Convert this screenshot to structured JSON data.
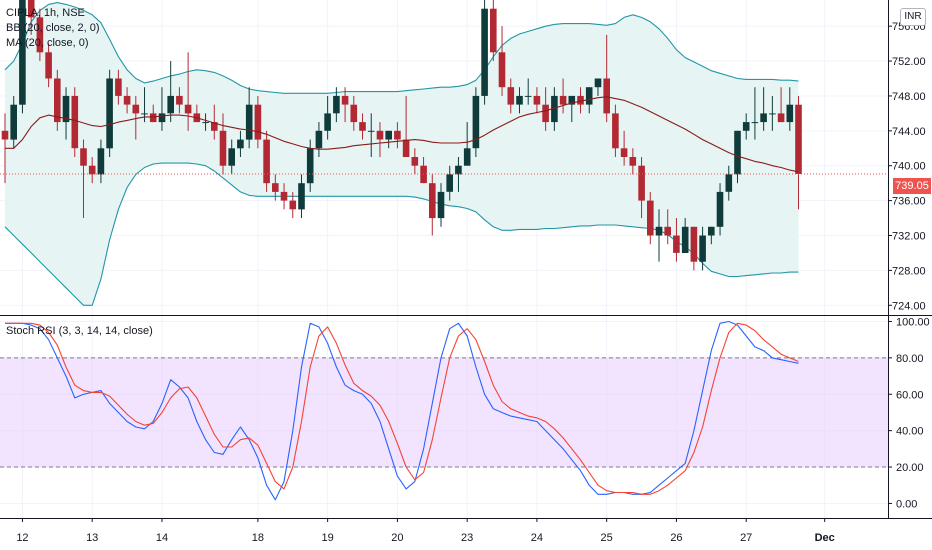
{
  "legend": {
    "symbol": "CIPLA, 1h, NSE",
    "bb": "BB (20, close, 2, 0)",
    "ma": "MA (20, close, 0)",
    "stoch": "Stoch RSI (3, 3, 14, 14, close)"
  },
  "currency": "INR",
  "last_price": "739.05",
  "colors": {
    "up": "#26a69a",
    "down": "#ef5350",
    "up_fill": "#0f3b3a",
    "down_fill": "#b22833",
    "bb_band": "#2196a6",
    "bb_fill": "#e6f5f4",
    "ma": "#8b1a1a",
    "stoch_k": "#2962ff",
    "stoch_d": "#f44336",
    "stoch_zone": "#e7ccff",
    "last_line": "#ef5350"
  },
  "chart_data": [
    {
      "type": "candlestick",
      "title": "CIPLA, 1h, NSE",
      "ylim": [
        723,
        759
      ],
      "y_ticks": [
        724,
        728,
        732,
        736,
        740,
        744,
        748,
        752,
        756
      ],
      "y_tick_labels": [
        "724.00",
        "728.00",
        "732.00",
        "736.00",
        "740.00",
        "744.00",
        "748.00",
        "752.00",
        "756.00"
      ],
      "x_labels": [
        "12",
        "13",
        "14",
        "18",
        "19",
        "20",
        "23",
        "24",
        "25",
        "26",
        "27",
        "Dec"
      ],
      "last_price": 739.05,
      "candles": [
        [
          744.0,
          746.0,
          738.0,
          743.0
        ],
        [
          743.0,
          748.0,
          742.0,
          747.0
        ],
        [
          747.0,
          760.0,
          746.0,
          759.0
        ],
        [
          759.0,
          761.0,
          755.0,
          757.0
        ],
        [
          757.0,
          758.0,
          752.0,
          753.0
        ],
        [
          753.0,
          754.0,
          749.0,
          750.0
        ],
        [
          750.0,
          751.0,
          744.0,
          745.0
        ],
        [
          745.0,
          749.0,
          743.0,
          748.0
        ],
        [
          748.0,
          749.0,
          741.0,
          742.0
        ],
        [
          742.0,
          743.0,
          734.0,
          740.0
        ],
        [
          740.0,
          741.0,
          738.0,
          739.0
        ],
        [
          739.0,
          743.0,
          738.0,
          742.0
        ],
        [
          742.0,
          751.0,
          741.0,
          750.0
        ],
        [
          750.0,
          751.0,
          747.0,
          748.0
        ],
        [
          748.0,
          749.0,
          746.0,
          747.0
        ],
        [
          747.0,
          748.0,
          743.0,
          746.0
        ],
        [
          746.0,
          749.0,
          745.0,
          746.0
        ],
        [
          746.0,
          747.0,
          745.0,
          745.0
        ],
        [
          745.0,
          749.0,
          744.0,
          746.0
        ],
        [
          746.0,
          752.0,
          745.0,
          748.0
        ],
        [
          748.0,
          749.0,
          746.0,
          747.0
        ],
        [
          747.0,
          753.0,
          744.0,
          746.0
        ],
        [
          746.0,
          747.0,
          745.0,
          745.0
        ],
        [
          745.0,
          746.0,
          744.0,
          745.0
        ],
        [
          745.0,
          747.0,
          743.0,
          744.0
        ],
        [
          744.0,
          746.0,
          739.0,
          740.0
        ],
        [
          740.0,
          743.0,
          739.0,
          742.0
        ],
        [
          742.0,
          744.0,
          741.0,
          743.0
        ],
        [
          743.0,
          749.0,
          742.0,
          747.0
        ],
        [
          747.0,
          748.0,
          742.0,
          743.0
        ],
        [
          743.0,
          744.0,
          737.0,
          738.0
        ],
        [
          738.0,
          739.0,
          736.0,
          737.0
        ],
        [
          737.0,
          738.0,
          735.0,
          736.0
        ],
        [
          736.0,
          737.0,
          734.0,
          735.0
        ],
        [
          735.0,
          739.0,
          734.0,
          738.0
        ],
        [
          738.0,
          743.0,
          737.0,
          742.0
        ],
        [
          742.0,
          745.0,
          741.0,
          744.0
        ],
        [
          744.0,
          748.0,
          743.0,
          746.0
        ],
        [
          746.0,
          749.0,
          745.0,
          748.0
        ],
        [
          748.0,
          749.0,
          745.0,
          747.0
        ],
        [
          747.0,
          748.0,
          744.0,
          745.0
        ],
        [
          745.0,
          746.0,
          743.0,
          744.0
        ],
        [
          744.0,
          746.0,
          741.0,
          744.0
        ],
        [
          744.0,
          745.0,
          741.0,
          743.0
        ],
        [
          743.0,
          744.0,
          742.0,
          744.0
        ],
        [
          744.0,
          745.0,
          742.0,
          743.0
        ],
        [
          743.0,
          748.0,
          741.0,
          741.0
        ],
        [
          741.0,
          742.0,
          739.0,
          740.0
        ],
        [
          740.0,
          741.0,
          738.0,
          738.0
        ],
        [
          738.0,
          739.0,
          732.0,
          734.0
        ],
        [
          734.0,
          738.0,
          733.0,
          737.0
        ],
        [
          737.0,
          740.0,
          736.0,
          739.0
        ],
        [
          739.0,
          741.0,
          737.0,
          740.0
        ],
        [
          740.0,
          745.0,
          740.0,
          742.0
        ],
        [
          742.0,
          749.0,
          741.0,
          748.0
        ],
        [
          748.0,
          759.0,
          747.0,
          758.0
        ],
        [
          758.0,
          759.0,
          752.0,
          753.0
        ],
        [
          753.0,
          756.0,
          748.0,
          749.0
        ],
        [
          749.0,
          750.0,
          746.0,
          747.0
        ],
        [
          747.0,
          749.0,
          746.0,
          748.0
        ],
        [
          748.0,
          750.0,
          747.0,
          748.0
        ],
        [
          748.0,
          749.0,
          746.0,
          747.0
        ],
        [
          747.0,
          749.0,
          744.0,
          745.0
        ],
        [
          745.0,
          749.0,
          744.0,
          748.0
        ],
        [
          748.0,
          750.0,
          746.0,
          747.0
        ],
        [
          747.0,
          748.0,
          745.0,
          748.0
        ],
        [
          748.0,
          749.0,
          746.0,
          747.0
        ],
        [
          747.0,
          749.0,
          746.0,
          749.0
        ],
        [
          749.0,
          750.0,
          748.0,
          750.0
        ],
        [
          750.0,
          755.0,
          745.0,
          746.0
        ],
        [
          746.0,
          747.0,
          741.0,
          742.0
        ],
        [
          742.0,
          744.0,
          740.0,
          741.0
        ],
        [
          741.0,
          742.0,
          739.0,
          740.0
        ],
        [
          740.0,
          741.0,
          734.0,
          736.0
        ],
        [
          736.0,
          737.0,
          731.0,
          732.0
        ],
        [
          732.0,
          735.0,
          729.0,
          733.0
        ],
        [
          733.0,
          735.0,
          731.0,
          732.0
        ],
        [
          732.0,
          734.0,
          729.0,
          730.0
        ],
        [
          730.0,
          734.0,
          730.0,
          733.0
        ],
        [
          733.0,
          733.0,
          728.0,
          729.0
        ],
        [
          729.0,
          733.0,
          728.0,
          732.0
        ],
        [
          732.0,
          733.0,
          731.0,
          733.0
        ],
        [
          733.0,
          738.0,
          732.0,
          737.0
        ],
        [
          737.0,
          740.0,
          736.0,
          739.0
        ],
        [
          739.0,
          744.0,
          738.0,
          744.0
        ],
        [
          744.0,
          746.0,
          743.0,
          745.0
        ],
        [
          745.0,
          749.0,
          743.0,
          745.0
        ],
        [
          745.0,
          749.0,
          744.0,
          746.0
        ],
        [
          746.0,
          748.0,
          744.0,
          746.0
        ],
        [
          746.0,
          749.0,
          745.0,
          745.0
        ],
        [
          745.0,
          749.0,
          744.0,
          747.0
        ],
        [
          747.0,
          748.0,
          735.0,
          739.05
        ]
      ],
      "ma": [
        742.0,
        742.0,
        743.0,
        744.5,
        745.5,
        745.8,
        745.6,
        745.4,
        745.2,
        744.9,
        744.6,
        744.5,
        744.7,
        745.0,
        745.2,
        745.4,
        745.6,
        745.6,
        745.7,
        745.8,
        745.8,
        745.7,
        745.5,
        745.2,
        744.9,
        744.6,
        744.4,
        744.2,
        744.1,
        743.9,
        743.6,
        743.2,
        742.8,
        742.5,
        742.2,
        742.0,
        741.9,
        741.9,
        742.0,
        742.1,
        742.3,
        742.4,
        742.5,
        742.6,
        742.7,
        742.8,
        742.9,
        743.0,
        742.9,
        742.7,
        742.6,
        742.6,
        742.6,
        742.7,
        743.0,
        743.5,
        744.1,
        744.6,
        745.1,
        745.6,
        745.9,
        746.1,
        746.3,
        746.6,
        746.9,
        747.2,
        747.4,
        747.6,
        747.8,
        747.9,
        747.7,
        747.5,
        747.1,
        746.7,
        746.2,
        745.7,
        745.2,
        744.7,
        744.2,
        743.6,
        743.0,
        742.5,
        742.0,
        741.5,
        741.1,
        740.8,
        740.5,
        740.3,
        740.0,
        739.8,
        739.5,
        739.3
      ],
      "bb_upper": [
        751.0,
        752.0,
        754.0,
        756.5,
        757.8,
        758.5,
        758.7,
        758.5,
        758.2,
        757.8,
        757.3,
        756.4,
        754.5,
        752.5,
        751.0,
        750.0,
        749.5,
        749.7,
        750.0,
        750.3,
        750.5,
        750.8,
        751.0,
        750.9,
        750.7,
        750.3,
        749.8,
        749.2,
        748.8,
        748.6,
        748.5,
        748.4,
        748.3,
        748.3,
        748.3,
        748.3,
        748.3,
        748.3,
        748.4,
        748.5,
        748.5,
        748.5,
        748.5,
        748.5,
        748.5,
        748.5,
        748.6,
        748.7,
        748.8,
        748.9,
        749.0,
        749.0,
        749.1,
        749.3,
        749.8,
        751.0,
        752.5,
        753.8,
        754.6,
        755.1,
        755.4,
        755.7,
        756.0,
        756.2,
        756.3,
        756.3,
        756.3,
        756.3,
        756.2,
        756.1,
        756.3,
        757.0,
        757.3,
        757.0,
        756.5,
        755.7,
        754.6,
        753.3,
        752.4,
        751.9,
        751.4,
        750.9,
        750.6,
        750.3,
        750.0,
        749.9,
        749.9,
        749.9,
        749.9,
        749.8,
        749.8,
        749.7
      ],
      "bb_lower": [
        733.0,
        732.0,
        731.0,
        730.0,
        729.0,
        728.0,
        727.0,
        726.0,
        725.0,
        724.0,
        724.0,
        727.0,
        731.5,
        735.0,
        737.5,
        739.0,
        739.8,
        740.2,
        740.3,
        740.3,
        740.3,
        740.3,
        740.2,
        740.0,
        739.4,
        738.6,
        737.8,
        737.0,
        736.6,
        736.5,
        736.5,
        736.5,
        736.5,
        736.5,
        736.5,
        736.5,
        736.5,
        736.5,
        736.5,
        736.5,
        736.5,
        736.5,
        736.5,
        736.5,
        736.5,
        736.5,
        736.5,
        736.4,
        736.2,
        735.9,
        735.6,
        735.4,
        735.3,
        735.1,
        734.7,
        733.8,
        733.0,
        732.6,
        732.6,
        732.7,
        732.7,
        732.7,
        732.8,
        732.8,
        732.9,
        733.0,
        733.1,
        733.1,
        733.2,
        733.2,
        733.2,
        733.1,
        733.0,
        732.9,
        732.8,
        732.6,
        732.1,
        731.3,
        730.7,
        729.9,
        728.8,
        727.9,
        727.6,
        727.3,
        727.3,
        727.4,
        727.5,
        727.6,
        727.7,
        727.7,
        727.8,
        727.8
      ]
    },
    {
      "type": "line",
      "title": "Stoch RSI (3, 3, 14, 14, close)",
      "ylim": [
        -8,
        103
      ],
      "y_ticks": [
        0,
        20,
        40,
        60,
        80,
        100
      ],
      "y_tick_labels": [
        "0.00",
        "20.00",
        "40.00",
        "60.00",
        "80.00",
        "100.00"
      ],
      "bands": [
        20,
        80
      ],
      "series": [
        {
          "name": "K",
          "values": [
            99,
            99,
            99,
            98,
            96,
            90,
            80,
            70,
            58,
            60,
            61,
            62,
            55,
            50,
            45,
            42,
            41,
            45,
            55,
            68,
            64,
            58,
            45,
            35,
            28,
            27,
            35,
            42,
            35,
            25,
            10,
            2,
            12,
            40,
            75,
            99,
            97,
            88,
            75,
            65,
            62,
            60,
            55,
            45,
            30,
            15,
            8,
            12,
            30,
            55,
            80,
            96,
            99,
            92,
            75,
            60,
            52,
            50,
            48,
            47,
            46,
            45,
            40,
            35,
            30,
            24,
            18,
            10,
            5,
            5,
            6,
            6,
            5,
            5,
            6,
            10,
            14,
            18,
            22,
            40,
            62,
            84,
            99,
            100,
            98,
            92,
            86,
            84,
            80,
            79,
            78,
            77
          ]
        },
        {
          "name": "D",
          "values": [
            99,
            99,
            99,
            99,
            98,
            94,
            87,
            75,
            65,
            62,
            61,
            61,
            59,
            54,
            49,
            45,
            43,
            44,
            50,
            58,
            63,
            64,
            58,
            48,
            38,
            31,
            31,
            35,
            36,
            32,
            22,
            12,
            8,
            20,
            45,
            75,
            92,
            97,
            88,
            76,
            66,
            62,
            59,
            54,
            45,
            33,
            20,
            13,
            17,
            35,
            58,
            80,
            92,
            96,
            90,
            78,
            65,
            56,
            52,
            50,
            48,
            47,
            45,
            41,
            36,
            30,
            24,
            17,
            10,
            7,
            6,
            6,
            6,
            5,
            5,
            7,
            10,
            14,
            18,
            28,
            42,
            62,
            80,
            94,
            99,
            98,
            95,
            90,
            86,
            82,
            80,
            78
          ]
        }
      ]
    }
  ]
}
